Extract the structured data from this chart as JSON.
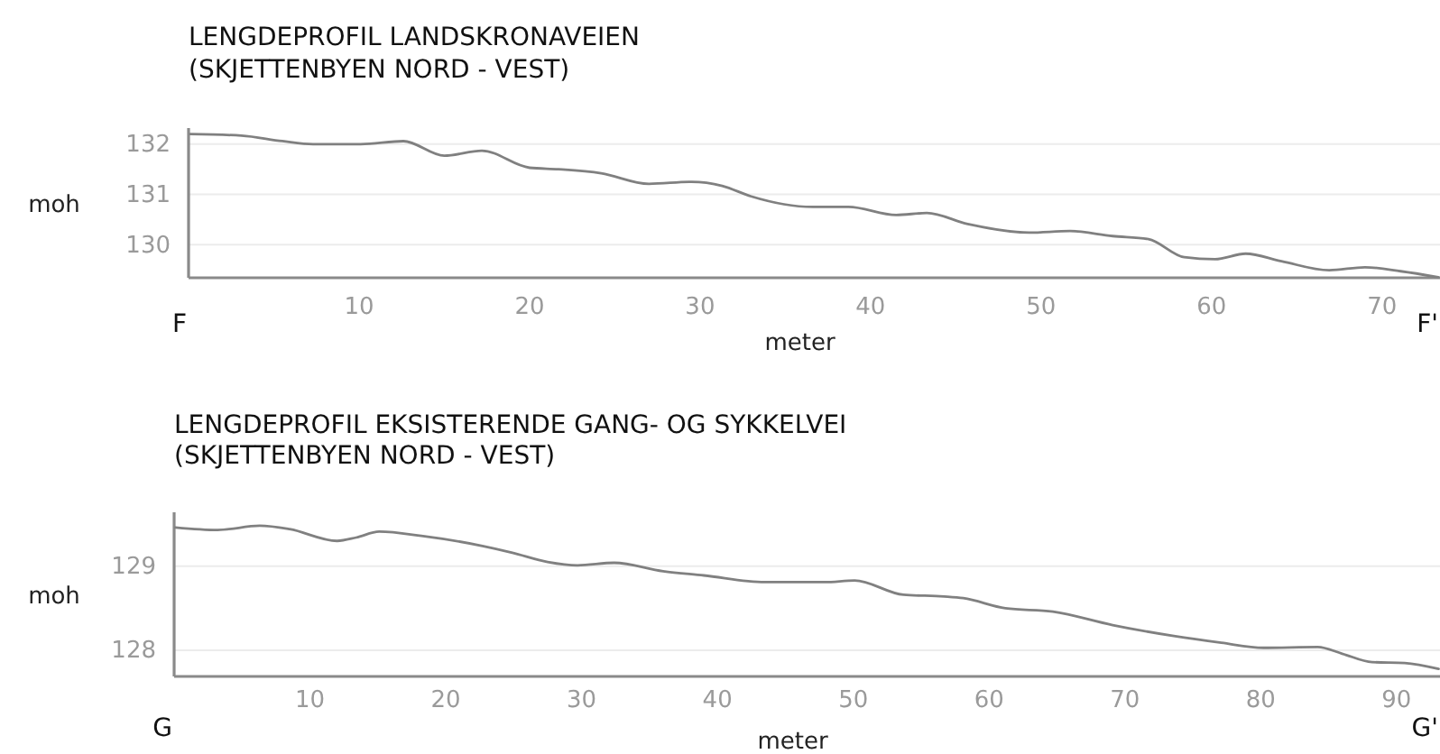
{
  "chart_data": [
    {
      "type": "line",
      "title": "LENGDEPROFIL LANDSKRONAVEIEN",
      "subtitle": "(SKJETTENBYEN NORD - VEST)",
      "xlabel": "meter",
      "ylabel": "moh",
      "annotations": [
        "F",
        "F'"
      ],
      "x": [
        0.1,
        3.1,
        5.5,
        7.3,
        10.1,
        12.6,
        15.0,
        17.2,
        20.0,
        21.7,
        24.2,
        27.0,
        29.5,
        31.3,
        33.0,
        36.6,
        38.7,
        41.5,
        43.3,
        45.7,
        49.3,
        51.7,
        54.2,
        56.3,
        58.4,
        60.2,
        62.0,
        64.1,
        66.9,
        69.0,
        71.1,
        73.3
      ],
      "series": [
        {
          "color": "#808080",
          "values": [
            132.2,
            132.17,
            132.06,
            132.0,
            132.0,
            132.06,
            131.77,
            131.87,
            131.53,
            131.5,
            131.42,
            131.21,
            131.25,
            131.17,
            130.96,
            130.75,
            130.75,
            130.59,
            130.63,
            130.41,
            130.24,
            130.27,
            130.17,
            130.11,
            129.75,
            129.71,
            129.82,
            129.67,
            129.49,
            129.55,
            129.47,
            129.35
          ]
        }
      ],
      "xlim": [
        0,
        73.4
      ],
      "xticks": [
        10,
        20,
        30,
        40,
        50,
        60,
        70
      ],
      "ylim": [
        129.34,
        132.32
      ],
      "yticks": [
        130,
        131,
        132
      ],
      "grid": "y"
    },
    {
      "type": "line",
      "title": "LENGDEPROFIL EKSISTERENDE GANG- OG SYKKELVEI",
      "subtitle": "(SKJETTENBYEN NORD - VEST)",
      "xlabel": "meter",
      "ylabel": "moh",
      "annotations": [
        "G",
        "G'"
      ],
      "x": [
        0.1,
        3.2,
        6.3,
        8.5,
        12.0,
        13.4,
        15.1,
        18.2,
        22.7,
        24.9,
        27.5,
        29.7,
        32.4,
        36.0,
        39.0,
        43.5,
        47.9,
        50.1,
        53.7,
        56.7,
        58.1,
        61.2,
        64.7,
        69.1,
        73.6,
        77.1,
        80.2,
        84.2,
        86.0,
        88.2,
        90.6,
        93.1
      ],
      "series": [
        {
          "color": "#808080",
          "values": [
            129.46,
            129.43,
            129.48,
            129.44,
            129.3,
            129.34,
            129.41,
            129.36,
            129.24,
            129.16,
            129.05,
            129.01,
            129.04,
            128.94,
            128.89,
            128.81,
            128.81,
            128.83,
            128.66,
            128.64,
            128.62,
            128.5,
            128.46,
            128.3,
            128.17,
            128.09,
            128.03,
            128.04,
            127.96,
            127.86,
            127.85,
            127.78
          ]
        }
      ],
      "xlim": [
        0,
        93.2
      ],
      "xticks": [
        10,
        20,
        30,
        40,
        50,
        60,
        70,
        80,
        90
      ],
      "ylim": [
        127.69,
        129.64
      ],
      "yticks": [
        128,
        129
      ],
      "grid": "y"
    }
  ]
}
